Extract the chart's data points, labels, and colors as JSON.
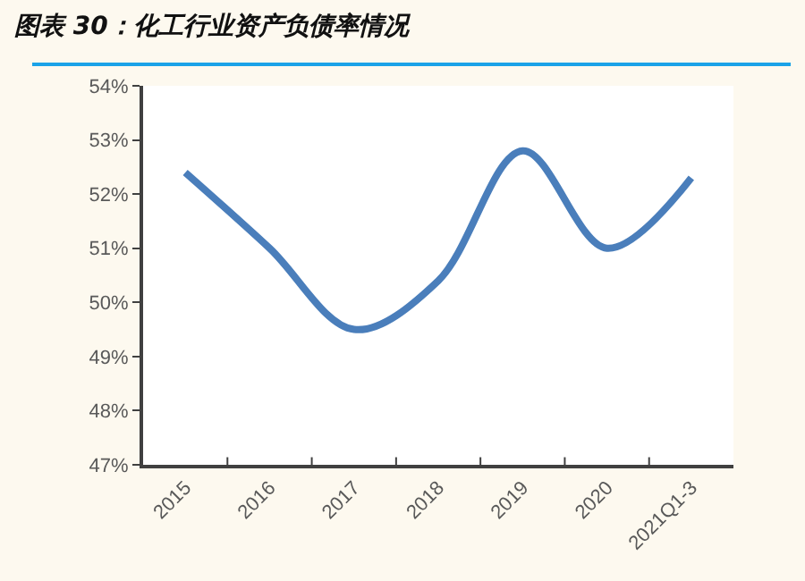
{
  "chart_data": {
    "type": "line",
    "title": "图表 30：化工行业资产负债率情况",
    "categories": [
      "2015",
      "2016",
      "2017",
      "2018",
      "2019",
      "2020",
      "2021Q1-3"
    ],
    "series": [
      {
        "color": "#4a7ebb",
        "values": [
          52.4,
          51.0,
          49.5,
          50.4,
          52.8,
          51.0,
          52.3
        ]
      }
    ],
    "ylim": [
      47,
      54
    ],
    "yticks": [
      {
        "value": 47,
        "label": "47%"
      },
      {
        "value": 48,
        "label": "48%"
      },
      {
        "value": 49,
        "label": "49%"
      },
      {
        "value": 50,
        "label": "50%"
      },
      {
        "value": 51,
        "label": "51%"
      },
      {
        "value": 52,
        "label": "52%"
      },
      {
        "value": 53,
        "label": "53%"
      },
      {
        "value": 54,
        "label": "54%"
      }
    ],
    "grid": false,
    "marker": "none",
    "line_style": "solid"
  }
}
